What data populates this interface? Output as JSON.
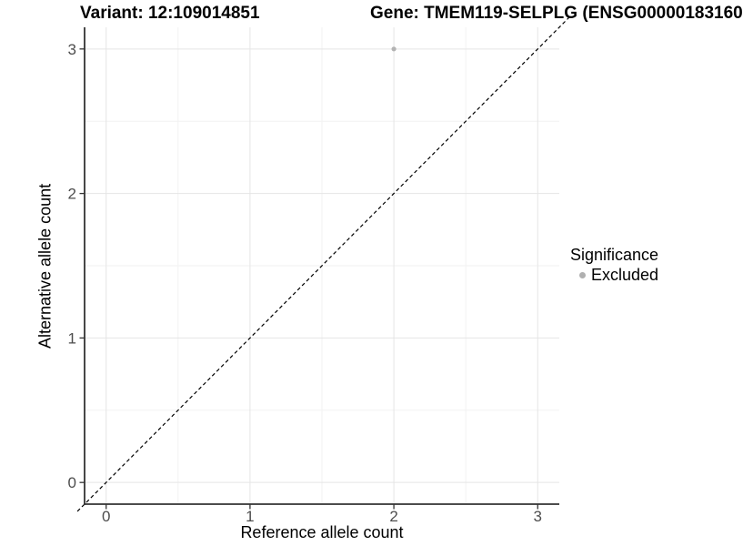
{
  "chart_data": {
    "type": "scatter",
    "titles": {
      "left": "Variant: 12:109014851",
      "right": "Gene: TMEM119-SELPLG (ENSG00000183160"
    },
    "xlabel": "Reference allele count",
    "ylabel": "Alternative allele count",
    "xlim": [
      -0.15,
      3.15
    ],
    "ylim": [
      -0.15,
      3.15
    ],
    "x_ticks": [
      0,
      1,
      2,
      3
    ],
    "y_ticks": [
      0,
      1,
      2,
      3
    ],
    "x_minor_ticks": [
      0.5,
      1.5,
      2.5
    ],
    "y_minor_ticks": [
      0.5,
      1.5,
      2.5
    ],
    "grid": "major+minor",
    "points": [
      {
        "x": 2,
        "y": 3,
        "series": "Excluded"
      }
    ],
    "reference_line": {
      "kind": "abline",
      "slope": 1,
      "intercept": 0,
      "linestyle": "dashed",
      "color": "#000000"
    },
    "legend": {
      "title": "Significance",
      "position": "right",
      "entries": [
        {
          "label": "Excluded",
          "color": "#b0b0b0",
          "marker": "circle"
        }
      ]
    },
    "colors": {
      "point": "#b3b3b3",
      "grid_major": "#e5e5e5",
      "grid_minor": "#f2f2f2",
      "axis_line": "#333333",
      "tick_label": "#4d4d4d",
      "title": "#000000",
      "background": "#ffffff"
    }
  }
}
